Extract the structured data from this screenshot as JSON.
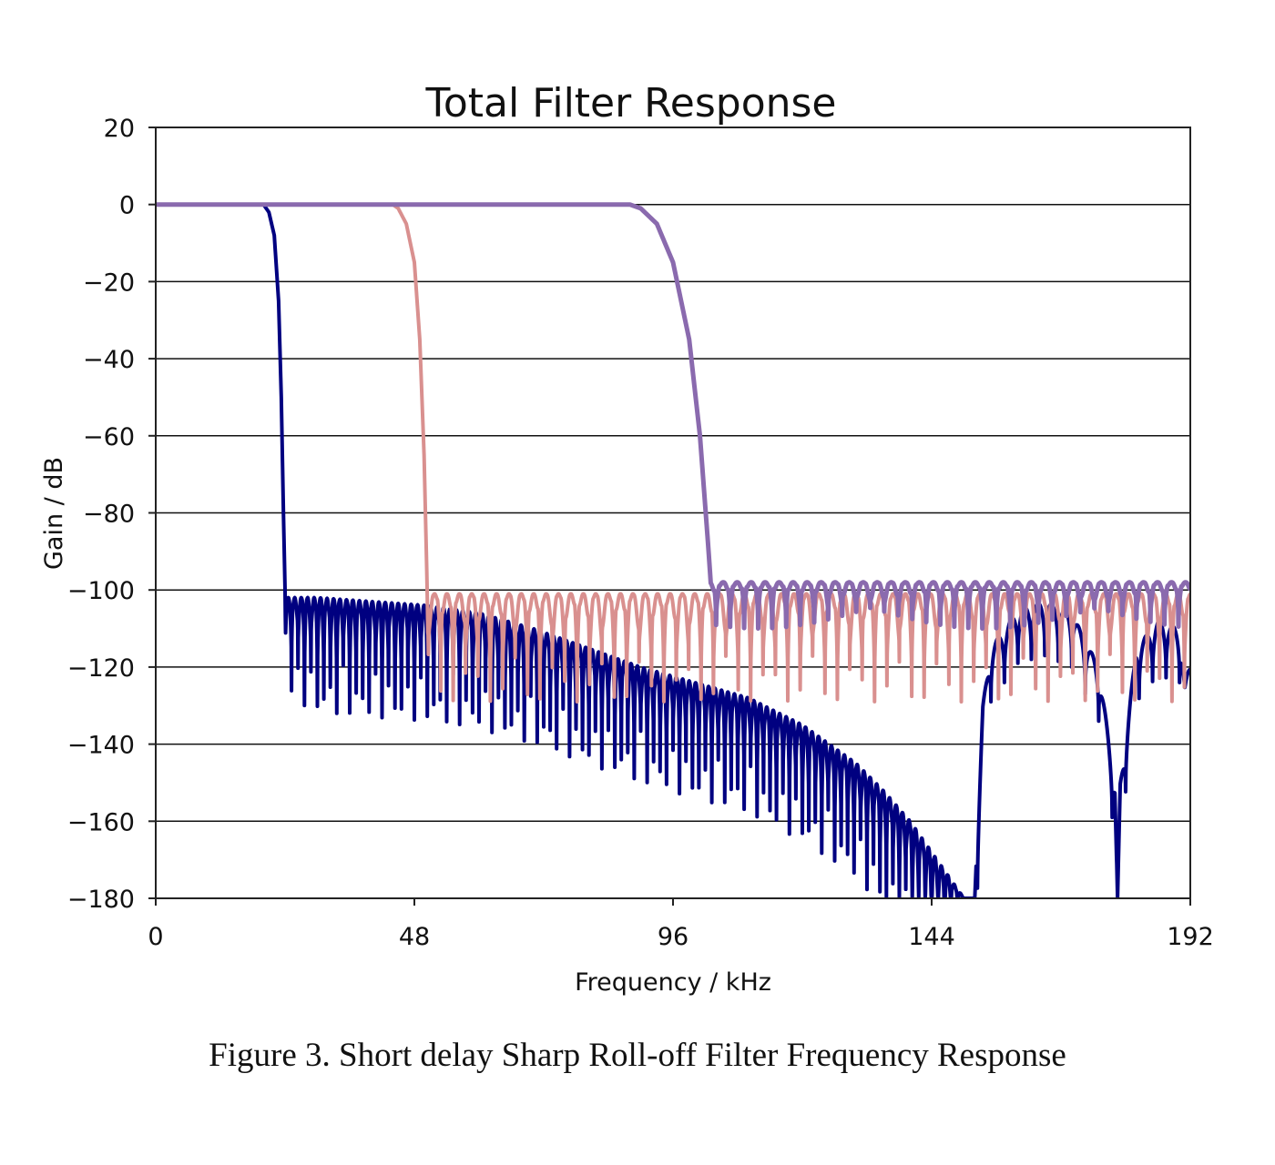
{
  "caption": "Figure 3. Short delay Sharp Roll-off Filter Frequency Response",
  "chart_data": {
    "type": "line",
    "title": "Total Filter Response",
    "xlabel": "Frequency / kHz",
    "ylabel": "Gain / dB",
    "xlim": [
      0,
      192
    ],
    "ylim": [
      -180,
      20
    ],
    "xticks": [
      0,
      48,
      96,
      144,
      192
    ],
    "yticks": [
      20,
      0,
      -20,
      -40,
      -60,
      -80,
      -100,
      -120,
      -140,
      -160,
      -180
    ],
    "xtick_labels": [
      "0",
      "48",
      "96",
      "144",
      "192"
    ],
    "ytick_labels": [
      "20",
      "0",
      "−20",
      "−40",
      "−60",
      "−80",
      "−100",
      "−120",
      "−140",
      "−160",
      "−180"
    ],
    "grid": "horizontal",
    "legend": "none",
    "series": [
      {
        "color": "#000080",
        "stroke_width": 4,
        "passband_db": 0,
        "x": [
          0,
          20,
          21,
          22,
          22.8,
          23.3,
          23.7,
          24,
          24.1,
          30,
          40,
          50,
          60,
          70,
          80,
          90,
          100,
          110,
          120,
          130,
          135,
          140,
          145,
          150,
          152
        ],
        "y": [
          0,
          0,
          -2,
          -8,
          -25,
          -50,
          -80,
          -100,
          -102,
          -102,
          -103,
          -104,
          -106,
          -110,
          -115,
          -120,
          -124,
          -128,
          -135,
          -145,
          -152,
          -160,
          -170,
          -180,
          -180
        ],
        "ripple_depth": [
          0,
          0,
          0,
          0,
          0,
          0,
          0,
          0,
          25,
          30,
          30,
          30,
          30,
          30,
          30,
          30,
          30,
          30,
          30,
          30,
          30,
          30,
          30,
          0,
          0
        ],
        "ripple_period_khz": 1.2,
        "tail": {
          "x": [
            152,
            152.6,
            153.5,
            155,
            160,
            165,
            170,
            175,
            178,
            178.5,
            179,
            182,
            186,
            190,
            191,
            192
          ],
          "y": [
            -180,
            -160,
            -130,
            -115,
            -105,
            -103,
            -106,
            -120,
            -150,
            -180,
            -150,
            -115,
            -108,
            -110,
            -125,
            -118
          ]
        }
      },
      {
        "color": "#d9908f",
        "stroke_width": 4,
        "passband_db": 0,
        "x": [
          0,
          44,
          45,
          46.5,
          48,
          49,
          49.8,
          50.3,
          50.5,
          192
        ],
        "y": [
          0,
          0,
          -1,
          -5,
          -15,
          -35,
          -65,
          -95,
          -101,
          -101
        ],
        "ripple_depth": [
          0,
          0,
          0,
          0,
          0,
          0,
          0,
          0,
          28,
          28
        ],
        "ripple_period_khz": 2.3
      },
      {
        "color": "#8a6aae",
        "stroke_width": 5,
        "passband_db": 0,
        "x": [
          0,
          88,
          90,
          93,
          96,
          99,
          101,
          102.5,
          103,
          192
        ],
        "y": [
          0,
          0,
          -1,
          -5,
          -15,
          -35,
          -60,
          -88,
          -98,
          -98
        ],
        "ripple_depth": [
          0,
          0,
          0,
          0,
          0,
          0,
          0,
          0,
          12,
          12
        ],
        "ripple_period_khz": 2.6
      }
    ]
  }
}
